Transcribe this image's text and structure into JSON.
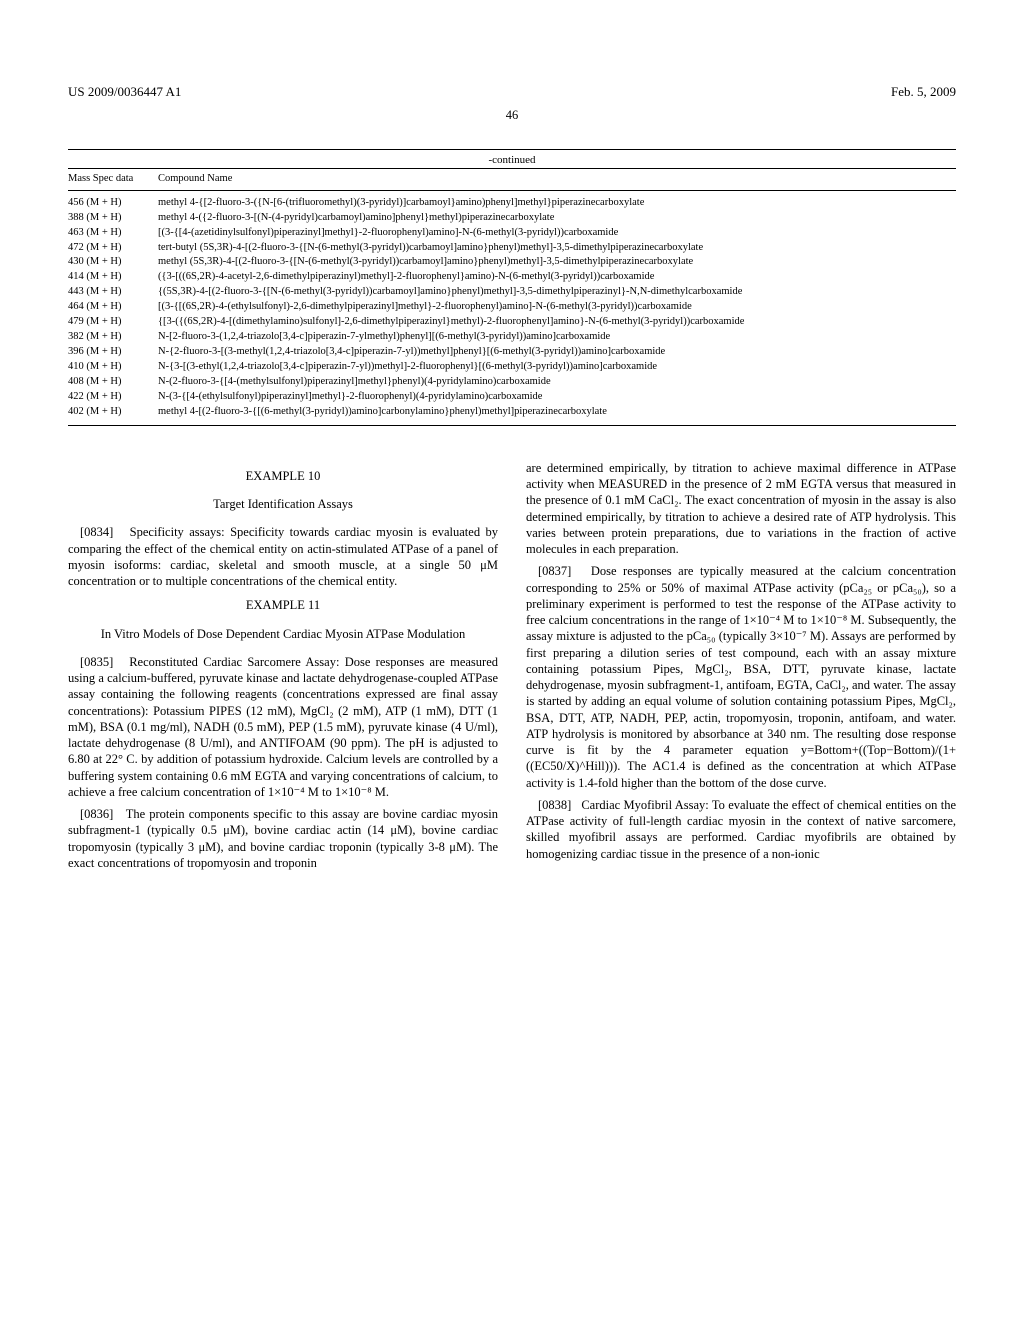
{
  "header": {
    "left": "US 2009/0036447 A1",
    "right": "Feb. 5, 2009"
  },
  "page_number": "46",
  "table": {
    "continued_label": "-continued",
    "columns": [
      "Mass Spec data",
      "Compound Name"
    ],
    "rows": [
      {
        "mass": "456 (M + H)",
        "name": "methyl 4-{[2-fluoro-3-({N-[6-(trifluoromethyl)(3-pyridyl)]carbamoyl}amino)phenyl]methyl}piperazinecarboxylate"
      },
      {
        "mass": "388 (M + H)",
        "name": "methyl 4-({2-fluoro-3-[(N-(4-pyridyl)carbamoyl)amino]phenyl}methyl)piperazinecarboxylate"
      },
      {
        "mass": "463 (M + H)",
        "name": "[(3-{[4-(azetidinylsulfonyl)piperazinyl]methyl}-2-fluorophenyl)amino]-N-(6-methyl(3-pyridyl))carboxamide"
      },
      {
        "mass": "472 (M + H)",
        "name": "tert-butyl (5S,3R)-4-[(2-fluoro-3-{[N-(6-methyl(3-pyridyl))carbamoyl]amino}phenyl)methyl]-3,5-dimethylpiperazinecarboxylate"
      },
      {
        "mass": "430 (M + H)",
        "name": "methyl (5S,3R)-4-[(2-fluoro-3-{[N-(6-methyl(3-pyridyl))carbamoyl]amino}phenyl)methyl]-3,5-dimethylpiperazinecarboxylate"
      },
      {
        "mass": "414 (M + H)",
        "name": "({3-[((6S,2R)-4-acetyl-2,6-dimethylpiperazinyl)methyl]-2-fluorophenyl}amino)-N-(6-methyl(3-pyridyl))carboxamide"
      },
      {
        "mass": "443 (M + H)",
        "name": "{(5S,3R)-4-[(2-fluoro-3-{[N-(6-methyl(3-pyridyl))carbamoyl]amino}phenyl)methyl]-3,5-dimethylpiperazinyl}-N,N-dimethylcarboxamide"
      },
      {
        "mass": "464 (M + H)",
        "name": "[(3-{[(6S,2R)-4-(ethylsulfonyl)-2,6-dimethylpiperazinyl]methyl}-2-fluorophenyl)amino]-N-(6-methyl(3-pyridyl))carboxamide"
      },
      {
        "mass": "479 (M + H)",
        "name": "{[3-({(6S,2R)-4-[(dimethylamino)sulfonyl]-2,6-dimethylpiperazinyl}methyl)-2-fluorophenyl]amino}-N-(6-methyl(3-pyridyl))carboxamide"
      },
      {
        "mass": "382 (M + H)",
        "name": "N-[2-fluoro-3-(1,2,4-triazolo[3,4-c]piperazin-7-ylmethyl)phenyl][(6-methyl(3-pyridyl))amino]carboxamide"
      },
      {
        "mass": "396 (M + H)",
        "name": "N-{2-fluoro-3-[(3-methyl(1,2,4-triazolo[3,4-c]piperazin-7-yl))methyl]phenyl}[(6-methyl(3-pyridyl))amino]carboxamide"
      },
      {
        "mass": "410 (M + H)",
        "name": "N-{3-[(3-ethyl(1,2,4-triazolo[3,4-c]piperazin-7-yl))methyl]-2-fluorophenyl}[(6-methyl(3-pyridyl))amino]carboxamide"
      },
      {
        "mass": "408 (M + H)",
        "name": "N-(2-fluoro-3-{[4-(methylsulfonyl)piperazinyl]methyl}phenyl)(4-pyridylamino)carboxamide"
      },
      {
        "mass": "422 (M + H)",
        "name": "N-(3-{[4-(ethylsulfonyl)piperazinyl]methyl}-2-fluorophenyl)(4-pyridylamino)carboxamide"
      },
      {
        "mass": "402 (M + H)",
        "name": "methyl 4-[(2-fluoro-3-{[(6-methyl(3-pyridyl))amino]carbonylamino}phenyl)methyl]piperazinecarboxylate"
      }
    ]
  },
  "left_col": {
    "example10_title": "EXAMPLE 10",
    "example10_sub": "Target Identification Assays",
    "para0834_num": "[0834]",
    "para0834": "Specificity assays: Specificity towards cardiac myosin is evaluated by comparing the effect of the chemical entity on actin-stimulated ATPase of a panel of myosin isoforms: cardiac, skeletal and smooth muscle, at a single 50 μM concentration or to multiple concentrations of the chemical entity.",
    "example11_title": "EXAMPLE 11",
    "example11_sub": "In Vitro Models of Dose Dependent Cardiac Myosin ATPase Modulation",
    "para0835_num": "[0835]",
    "para0835": "Reconstituted Cardiac Sarcomere Assay: Dose responses are measured using a calcium-buffered, pyruvate kinase and lactate dehydrogenase-coupled ATPase assay containing the following reagents (concentrations expressed are final assay concentrations): Potassium PIPES (12 mM), MgCl₂ (2 mM), ATP (1 mM), DTT (1 mM), BSA (0.1 mg/ml), NADH (0.5 mM), PEP (1.5 mM), pyruvate kinase (4 U/ml), lactate dehydrogenase (8 U/ml), and ANTIFOAM (90 ppm). The pH is adjusted to 6.80 at 22° C. by addition of potassium hydroxide. Calcium levels are controlled by a buffering system containing 0.6 mM EGTA and varying concentrations of calcium, to achieve a free calcium concentration of 1×10⁻⁴ M to 1×10⁻⁸ M.",
    "para0836_num": "[0836]",
    "para0836": "The protein components specific to this assay are bovine cardiac myosin subfragment-1 (typically 0.5 μM), bovine cardiac actin (14 μM), bovine cardiac tropomyosin (typically 3 μM), and bovine cardiac troponin (typically 3-8 μM). The exact concentrations of tropomyosin and troponin"
  },
  "right_col": {
    "para_cont": "are determined empirically, by titration to achieve maximal difference in ATPase activity when MEASURED in the presence of 2 mM EGTA versus that measured in the presence of 0.1 mM CaCl₂. The exact concentration of myosin in the assay is also determined empirically, by titration to achieve a desired rate of ATP hydrolysis. This varies between protein preparations, due to variations in the fraction of active molecules in each preparation.",
    "para0837_num": "[0837]",
    "para0837": "Dose responses are typically measured at the calcium concentration corresponding to 25% or 50% of maximal ATPase activity (pCa₂₅ or pCa₅₀), so a preliminary experiment is performed to test the response of the ATPase activity to free calcium concentrations in the range of 1×10⁻⁴ M to 1×10⁻⁸ M. Subsequently, the assay mixture is adjusted to the pCa₅₀ (typically 3×10⁻⁷ M). Assays are performed by first preparing a dilution series of test compound, each with an assay mixture containing potassium Pipes, MgCl₂, BSA, DTT, pyruvate kinase, lactate dehydrogenase, myosin subfragment-1, antifoam, EGTA, CaCl₂, and water. The assay is started by adding an equal volume of solution containing potassium Pipes, MgCl₂, BSA, DTT, ATP, NADH, PEP, actin, tropomyosin, troponin, antifoam, and water. ATP hydrolysis is monitored by absorbance at 340 nm. The resulting dose response curve is fit by the 4 parameter equation y=Bottom+((Top−Bottom)/(1+((EC50/X)^Hill))). The AC1.4 is defined as the concentration at which ATPase activity is 1.4-fold higher than the bottom of the dose curve.",
    "para0838_num": "[0838]",
    "para0838": "Cardiac Myofibril Assay: To evaluate the effect of chemical entities on the ATPase activity of full-length cardiac myosin in the context of native sarcomere, skilled myofibril assays are performed. Cardiac myofibrils are obtained by homogenizing cardiac tissue in the presence of a non-ionic"
  }
}
